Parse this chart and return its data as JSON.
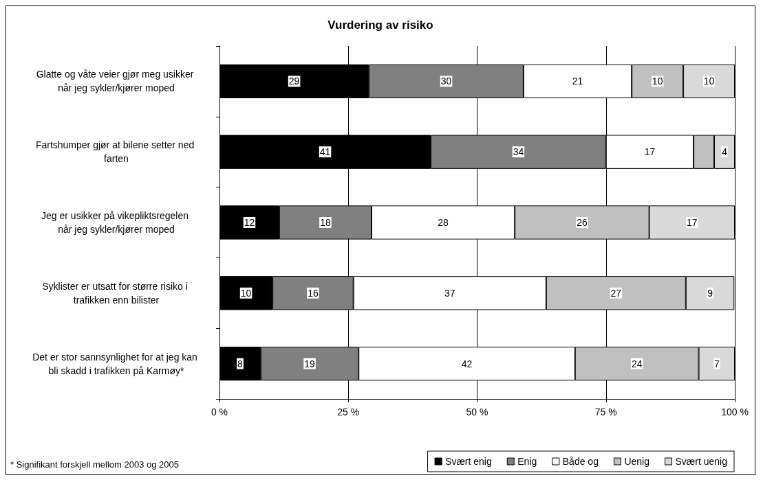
{
  "chart_data": {
    "type": "bar",
    "title": "Vurdering av risiko",
    "orientation": "horizontal",
    "stacked": true,
    "categories": [
      "Glatte og våte veier gjør meg usikker når jeg sykler/kjører moped",
      "Fartshumper gjør at bilene setter ned farten",
      "Jeg er usikker på vikepliktsregelen når jeg sykler/kjører moped",
      "Syklister er utsatt for større risiko i trafikken enn bilister",
      "Det er stor sannsynlighet for at jeg kan bli skadd i trafikken på Karmøy*"
    ],
    "series": [
      {
        "name": "Svært enig",
        "color": "#000000",
        "values": [
          29,
          41,
          11.6,
          10.3,
          8
        ],
        "value_labels": [
          "29",
          "41",
          "12",
          "10",
          "8"
        ]
      },
      {
        "name": "Enig",
        "color": "#808080",
        "values": [
          30,
          34,
          17.9,
          15.7,
          19
        ],
        "value_labels": [
          "30",
          "34",
          "18",
          "16",
          "19"
        ]
      },
      {
        "name": "Både og",
        "color": "#ffffff",
        "values": [
          21,
          17,
          27.8,
          37.4,
          42
        ],
        "value_labels": [
          "21",
          "17",
          "28",
          "37",
          "42"
        ]
      },
      {
        "name": "Uenig",
        "color": "#c0c0c0",
        "values": [
          10,
          4,
          26.1,
          27.1,
          24
        ],
        "value_labels": [
          "10",
          null,
          "26",
          "27",
          "24"
        ]
      },
      {
        "name": "Svært uenig",
        "color": "#d9d9d9",
        "values": [
          10,
          4,
          16.6,
          9.4,
          7
        ],
        "value_labels": [
          "10",
          "4",
          "17",
          "9",
          "7"
        ]
      }
    ],
    "xlim": [
      0,
      100
    ],
    "xticks": [
      {
        "value": 0,
        "label": "0 %"
      },
      {
        "value": 25,
        "label": "25 %"
      },
      {
        "value": 50,
        "label": "50 %"
      },
      {
        "value": 75,
        "label": "75 %"
      },
      {
        "value": 100,
        "label": "100 %"
      }
    ],
    "grid": "x",
    "legend": "bottom right",
    "annotations": [
      "* Signifikant forskjell mellom 2003 og 2005"
    ]
  }
}
